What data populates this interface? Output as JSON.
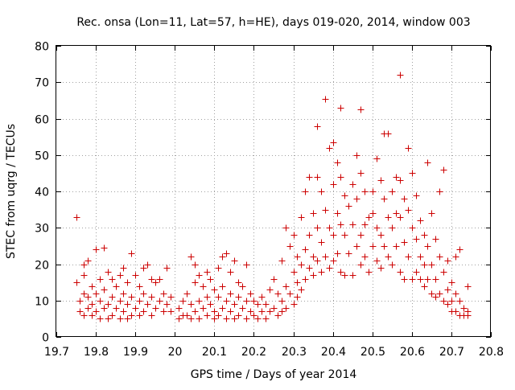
{
  "chart_data": {
    "type": "scatter",
    "title": "Rec. onsa (Lon=11, Lat=57, h=HE), days 019-020, 2014, window 003",
    "xlabel": "GPS time / Days of year 2014",
    "ylabel": "STEC from uqrg / TECUs",
    "xlim": [
      19.7,
      20.8
    ],
    "ylim": [
      0,
      80
    ],
    "xticks": [
      "19.7",
      "19.8",
      "19.9",
      "20",
      "20.1",
      "20.2",
      "20.3",
      "20.4",
      "20.5",
      "20.6",
      "20.7",
      "20.8"
    ],
    "yticks": [
      "0",
      "10",
      "20",
      "30",
      "40",
      "50",
      "60",
      "70",
      "80"
    ],
    "grid": true,
    "marker": "+",
    "color": "#cc0000",
    "series": [
      {
        "points": [
          [
            19.75,
            33
          ],
          [
            19.75,
            15
          ],
          [
            19.76,
            10
          ],
          [
            19.76,
            7
          ],
          [
            19.77,
            20
          ],
          [
            19.77,
            17
          ],
          [
            19.77,
            12
          ],
          [
            19.77,
            6
          ],
          [
            19.78,
            21
          ],
          [
            19.78,
            11
          ],
          [
            19.78,
            8
          ],
          [
            19.79,
            14
          ],
          [
            19.79,
            9
          ],
          [
            19.79,
            6
          ],
          [
            19.8,
            24
          ],
          [
            19.8,
            12
          ],
          [
            19.8,
            7
          ],
          [
            19.81,
            16
          ],
          [
            19.81,
            10
          ],
          [
            19.81,
            5
          ],
          [
            19.82,
            24.5
          ],
          [
            19.82,
            13
          ],
          [
            19.82,
            8
          ],
          [
            19.83,
            18
          ],
          [
            19.83,
            9
          ],
          [
            19.83,
            5
          ],
          [
            19.84,
            16
          ],
          [
            19.84,
            11
          ],
          [
            19.84,
            6
          ],
          [
            19.85,
            14
          ],
          [
            19.85,
            8
          ],
          [
            19.86,
            17
          ],
          [
            19.86,
            10
          ],
          [
            19.86,
            5
          ],
          [
            19.87,
            19
          ],
          [
            19.87,
            12
          ],
          [
            19.87,
            7
          ],
          [
            19.88,
            15
          ],
          [
            19.88,
            9
          ],
          [
            19.88,
            5
          ],
          [
            19.89,
            23
          ],
          [
            19.89,
            11
          ],
          [
            19.89,
            6
          ],
          [
            19.9,
            17
          ],
          [
            19.9,
            8
          ],
          [
            19.91,
            14
          ],
          [
            19.91,
            10
          ],
          [
            19.91,
            6
          ],
          [
            19.92,
            19
          ],
          [
            19.92,
            12
          ],
          [
            19.92,
            7
          ],
          [
            19.93,
            20
          ],
          [
            19.93,
            9
          ],
          [
            19.94,
            16
          ],
          [
            19.94,
            11
          ],
          [
            19.94,
            6
          ],
          [
            19.95,
            15
          ],
          [
            19.95,
            8
          ],
          [
            19.96,
            16
          ],
          [
            19.96,
            10
          ],
          [
            19.97,
            12
          ],
          [
            19.97,
            7
          ],
          [
            19.98,
            19
          ],
          [
            19.98,
            9
          ],
          [
            19.99,
            11
          ],
          [
            19.99,
            7
          ],
          [
            20.01,
            8
          ],
          [
            20.01,
            5
          ],
          [
            20.02,
            10
          ],
          [
            20.02,
            6
          ],
          [
            20.03,
            12
          ],
          [
            20.03,
            6
          ],
          [
            20.04,
            22
          ],
          [
            20.04,
            9
          ],
          [
            20.04,
            5
          ],
          [
            20.05,
            20
          ],
          [
            20.05,
            15
          ],
          [
            20.05,
            7
          ],
          [
            20.06,
            17
          ],
          [
            20.06,
            10
          ],
          [
            20.06,
            5
          ],
          [
            20.07,
            14
          ],
          [
            20.07,
            8
          ],
          [
            20.08,
            18
          ],
          [
            20.08,
            11
          ],
          [
            20.08,
            6
          ],
          [
            20.09,
            16
          ],
          [
            20.09,
            9
          ],
          [
            20.1,
            13
          ],
          [
            20.1,
            7
          ],
          [
            20.1,
            5
          ],
          [
            20.11,
            19
          ],
          [
            20.11,
            11
          ],
          [
            20.11,
            6
          ],
          [
            20.12,
            22
          ],
          [
            20.12,
            14
          ],
          [
            20.12,
            8
          ],
          [
            20.13,
            23
          ],
          [
            20.13,
            10
          ],
          [
            20.13,
            5
          ],
          [
            20.14,
            18
          ],
          [
            20.14,
            12
          ],
          [
            20.14,
            7
          ],
          [
            20.15,
            21
          ],
          [
            20.15,
            9
          ],
          [
            20.15,
            5
          ],
          [
            20.16,
            15
          ],
          [
            20.16,
            11
          ],
          [
            20.16,
            6
          ],
          [
            20.17,
            14
          ],
          [
            20.17,
            8
          ],
          [
            20.18,
            20
          ],
          [
            20.18,
            10
          ],
          [
            20.18,
            5
          ],
          [
            20.19,
            12
          ],
          [
            20.19,
            7
          ],
          [
            20.2,
            10
          ],
          [
            20.2,
            6
          ],
          [
            20.21,
            9
          ],
          [
            20.21,
            5
          ],
          [
            20.22,
            11
          ],
          [
            20.22,
            7
          ],
          [
            20.23,
            9
          ],
          [
            20.23,
            5
          ],
          [
            20.24,
            13
          ],
          [
            20.24,
            7
          ],
          [
            20.25,
            16
          ],
          [
            20.25,
            8
          ],
          [
            20.26,
            12
          ],
          [
            20.26,
            6
          ],
          [
            20.27,
            21
          ],
          [
            20.27,
            10
          ],
          [
            20.27,
            7
          ],
          [
            20.28,
            30
          ],
          [
            20.28,
            14
          ],
          [
            20.28,
            8
          ],
          [
            20.29,
            25
          ],
          [
            20.29,
            12
          ],
          [
            20.3,
            28
          ],
          [
            20.3,
            18
          ],
          [
            20.3,
            9
          ],
          [
            20.31,
            22
          ],
          [
            20.31,
            15
          ],
          [
            20.31,
            11
          ],
          [
            20.32,
            33
          ],
          [
            20.32,
            20
          ],
          [
            20.32,
            13
          ],
          [
            20.33,
            40
          ],
          [
            20.33,
            24
          ],
          [
            20.33,
            16
          ],
          [
            20.34,
            44
          ],
          [
            20.34,
            28
          ],
          [
            20.34,
            19
          ],
          [
            20.35,
            34
          ],
          [
            20.35,
            22
          ],
          [
            20.35,
            17
          ],
          [
            20.36,
            44
          ],
          [
            20.36,
            58
          ],
          [
            20.36,
            30
          ],
          [
            20.36,
            21
          ],
          [
            20.37,
            40
          ],
          [
            20.37,
            26
          ],
          [
            20.37,
            18
          ],
          [
            20.38,
            65.5
          ],
          [
            20.38,
            35
          ],
          [
            20.38,
            22
          ],
          [
            20.39,
            52
          ],
          [
            20.39,
            30
          ],
          [
            20.39,
            19
          ],
          [
            20.4,
            53.5
          ],
          [
            20.4,
            42
          ],
          [
            20.4,
            28
          ],
          [
            20.4,
            21
          ],
          [
            20.41,
            48
          ],
          [
            20.41,
            34
          ],
          [
            20.41,
            23
          ],
          [
            20.42,
            63
          ],
          [
            20.42,
            44
          ],
          [
            20.42,
            31
          ],
          [
            20.42,
            18
          ],
          [
            20.43,
            39
          ],
          [
            20.43,
            28
          ],
          [
            20.43,
            17
          ],
          [
            20.44,
            36
          ],
          [
            20.44,
            23
          ],
          [
            20.45,
            42
          ],
          [
            20.45,
            31
          ],
          [
            20.45,
            17
          ],
          [
            20.46,
            50
          ],
          [
            20.46,
            38
          ],
          [
            20.46,
            25
          ],
          [
            20.47,
            62.5
          ],
          [
            20.47,
            45
          ],
          [
            20.47,
            28
          ],
          [
            20.47,
            20
          ],
          [
            20.48,
            40
          ],
          [
            20.48,
            31
          ],
          [
            20.48,
            22
          ],
          [
            20.49,
            33
          ],
          [
            20.49,
            18
          ],
          [
            20.5,
            40
          ],
          [
            20.5,
            34
          ],
          [
            20.5,
            25
          ],
          [
            20.51,
            49
          ],
          [
            20.51,
            30
          ],
          [
            20.51,
            21
          ],
          [
            20.52,
            43
          ],
          [
            20.52,
            28
          ],
          [
            20.52,
            19
          ],
          [
            20.53,
            56
          ],
          [
            20.53,
            38
          ],
          [
            20.53,
            25
          ],
          [
            20.54,
            56
          ],
          [
            20.54,
            33
          ],
          [
            20.54,
            22
          ],
          [
            20.55,
            40
          ],
          [
            20.55,
            30
          ],
          [
            20.55,
            20
          ],
          [
            20.56,
            44
          ],
          [
            20.56,
            34
          ],
          [
            20.56,
            25
          ],
          [
            20.57,
            72
          ],
          [
            20.57,
            43
          ],
          [
            20.57,
            33
          ],
          [
            20.57,
            18
          ],
          [
            20.58,
            38
          ],
          [
            20.58,
            26
          ],
          [
            20.58,
            16
          ],
          [
            20.59,
            52
          ],
          [
            20.59,
            35
          ],
          [
            20.59,
            22
          ],
          [
            20.6,
            45
          ],
          [
            20.6,
            30
          ],
          [
            20.6,
            16
          ],
          [
            20.61,
            39
          ],
          [
            20.61,
            27
          ],
          [
            20.61,
            18
          ],
          [
            20.62,
            32
          ],
          [
            20.62,
            22
          ],
          [
            20.62,
            16
          ],
          [
            20.63,
            28
          ],
          [
            20.63,
            20
          ],
          [
            20.63,
            14
          ],
          [
            20.64,
            48
          ],
          [
            20.64,
            25
          ],
          [
            20.64,
            16
          ],
          [
            20.65,
            34
          ],
          [
            20.65,
            20
          ],
          [
            20.65,
            12
          ],
          [
            20.66,
            27
          ],
          [
            20.66,
            16
          ],
          [
            20.66,
            11
          ],
          [
            20.67,
            40
          ],
          [
            20.67,
            22
          ],
          [
            20.67,
            12
          ],
          [
            20.68,
            46
          ],
          [
            20.68,
            18
          ],
          [
            20.68,
            10
          ],
          [
            20.69,
            21
          ],
          [
            20.69,
            13
          ],
          [
            20.69,
            9
          ],
          [
            20.7,
            15
          ],
          [
            20.7,
            10
          ],
          [
            20.7,
            7
          ],
          [
            20.71,
            22
          ],
          [
            20.71,
            12
          ],
          [
            20.71,
            7
          ],
          [
            20.72,
            24
          ],
          [
            20.72,
            10
          ],
          [
            20.72,
            6
          ],
          [
            20.73,
            8
          ],
          [
            20.73,
            6
          ],
          [
            20.74,
            14
          ],
          [
            20.74,
            7
          ],
          [
            20.74,
            6
          ]
        ]
      }
    ]
  }
}
